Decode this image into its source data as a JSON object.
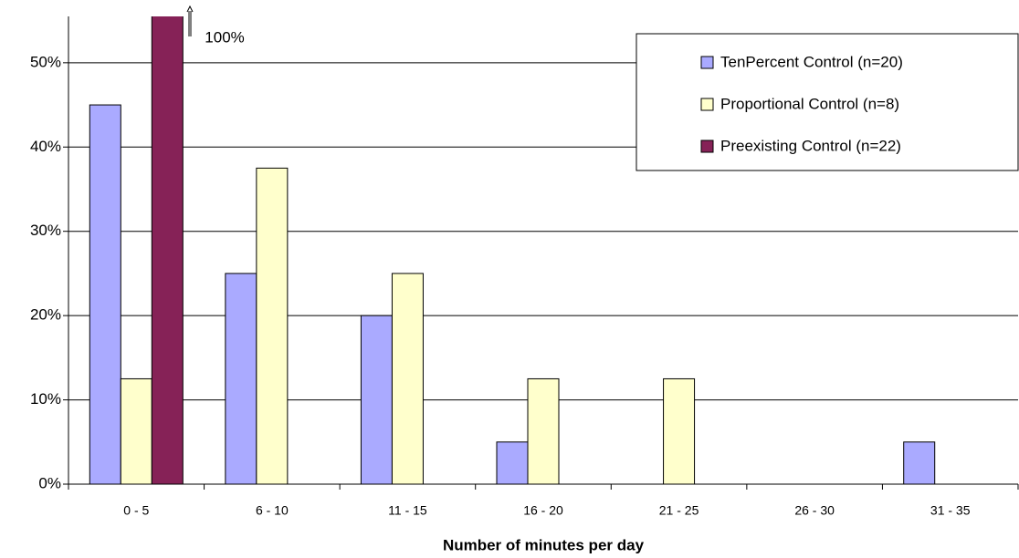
{
  "chart_data": {
    "type": "bar",
    "x_label": "Number of minutes per day",
    "categories": [
      "0 - 5",
      "6 - 10",
      "11 - 15",
      "16 - 20",
      "21 - 25",
      "26 - 30",
      "31 - 35"
    ],
    "series": [
      {
        "name": "TenPercent Control (n=20)",
        "color": "#aaaaff",
        "values": [
          45,
          25,
          20,
          5,
          0,
          0,
          5
        ]
      },
      {
        "name": "Proportional Control (n=8)",
        "color": "#ffffcc",
        "values": [
          12.5,
          37.5,
          25,
          12.5,
          12.5,
          0,
          0
        ]
      },
      {
        "name": "Preexisting Control (n=22)",
        "color": "#862257",
        "values": [
          100,
          0,
          0,
          0,
          0,
          0,
          0
        ],
        "value_labels": [
          "100%",
          null,
          null,
          null,
          null,
          null,
          null
        ]
      }
    ],
    "ylim": [
      0,
      55.5
    ],
    "yticks": [
      {
        "value": 0,
        "label": "0%"
      },
      {
        "value": 10,
        "label": "10%"
      },
      {
        "value": 20,
        "label": "20%"
      },
      {
        "value": 30,
        "label": "30%"
      },
      {
        "value": 40,
        "label": "40%"
      },
      {
        "value": 50,
        "label": "50%"
      }
    ],
    "grid": true,
    "legend_position": "upper right"
  }
}
